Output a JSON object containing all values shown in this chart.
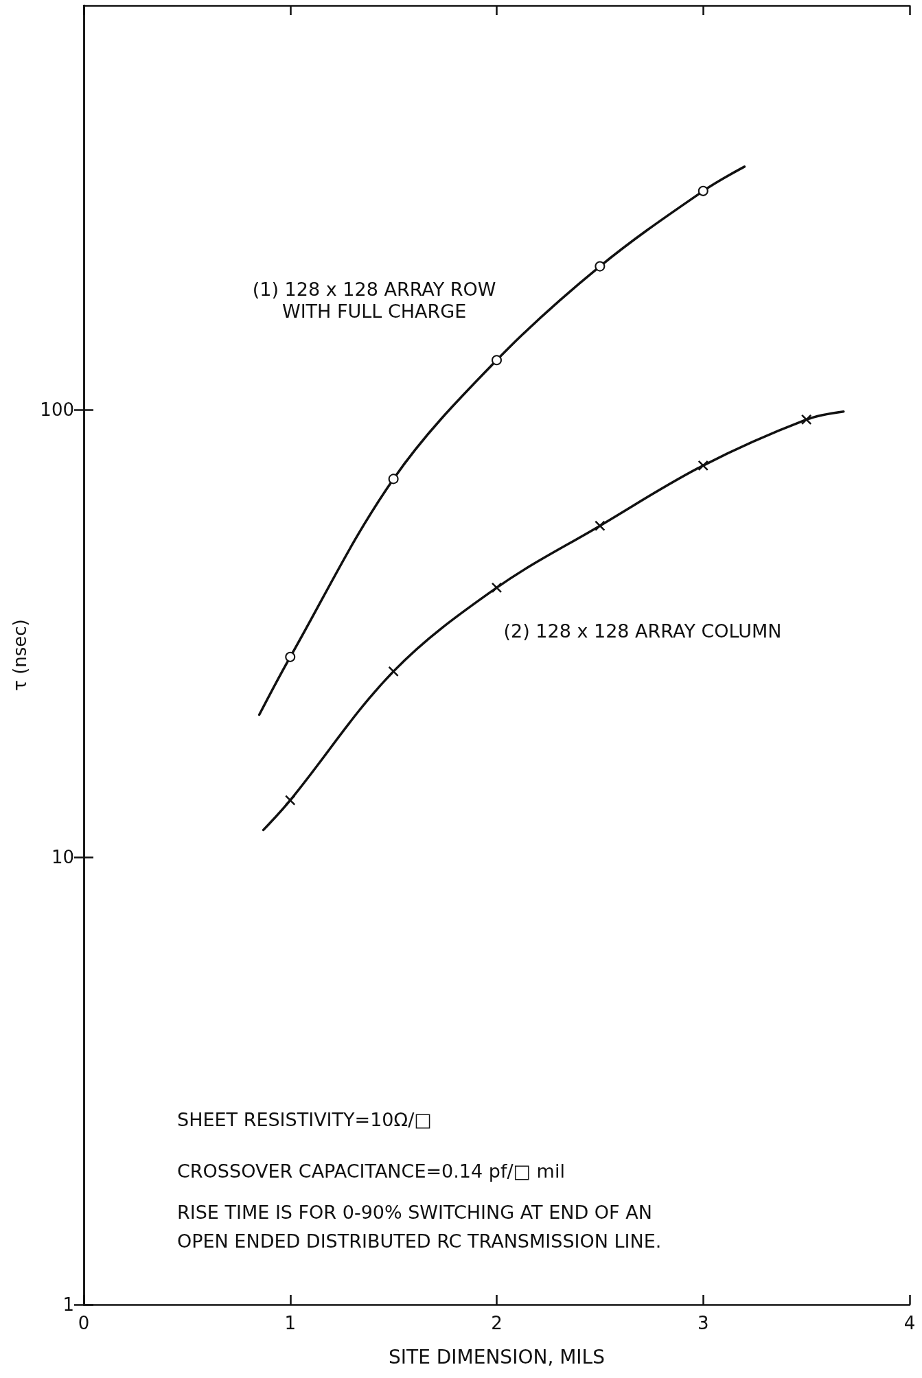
{
  "chart_data": {
    "type": "line",
    "xlabel": "SITE DIMENSION, MILS",
    "ylabel": "τ (nsec)",
    "xlim": [
      0,
      4
    ],
    "xticks": [
      0,
      1,
      2,
      3,
      4
    ],
    "ylim": [
      1,
      800
    ],
    "yticks": [
      1,
      10,
      100
    ],
    "log": "y",
    "grid": false,
    "legend": false,
    "line_style": "solid",
    "series": [
      {
        "name": "(1) 128 x 128 ARRAY ROW\nWITH FULL CHARGE",
        "color": "#111111",
        "marker": "circle",
        "x": [
          0.85,
          1,
          1.5,
          2,
          2.5,
          3,
          3.2
        ],
        "values": [
          20.8,
          28,
          70,
          129,
          209,
          308,
          349
        ]
      },
      {
        "name": "(2) 128 x 128 ARRAY COLUMN",
        "color": "#111111",
        "marker": "cross",
        "x": [
          0.87,
          1,
          1.5,
          2,
          2.5,
          3,
          3.5,
          3.68
        ],
        "values": [
          11.5,
          13.4,
          26,
          40,
          55,
          75,
          95,
          99
        ]
      }
    ],
    "annotations": [
      "SHEET RESISTIVITY=10Ω/□",
      "CROSSOVER CAPACITANCE=0.14 pf/□ mil",
      "RISE TIME IS FOR 0-90% SWITCHING AT END OF AN\nOPEN ENDED DISTRIBUTED RC TRANSMISSION LINE."
    ]
  }
}
